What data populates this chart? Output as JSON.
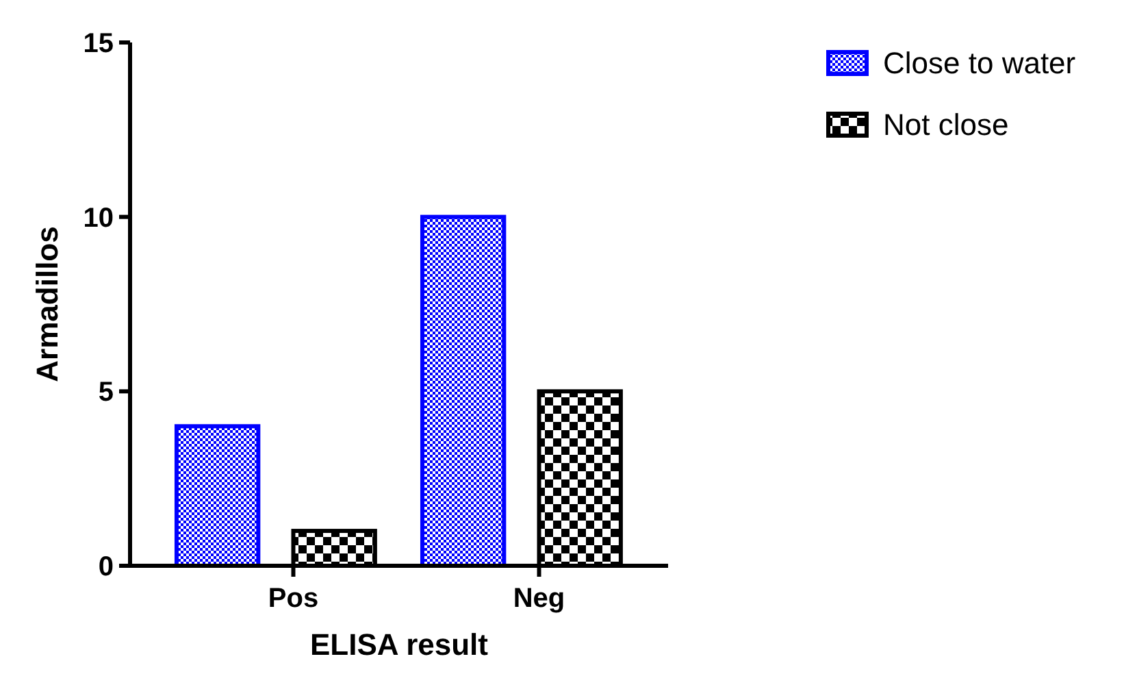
{
  "chart_data": {
    "type": "bar",
    "xlabel": "ELISA result",
    "ylabel": "Armadillos",
    "categories": [
      "Pos",
      "Neg"
    ],
    "series": [
      {
        "name": "Close to water",
        "color": "#0000ff",
        "values": [
          4,
          10
        ]
      },
      {
        "name": "Not close",
        "color": "#000000",
        "values": [
          1,
          5
        ]
      }
    ],
    "ylim": [
      0,
      15
    ],
    "yticks": [
      0,
      5,
      10,
      15
    ],
    "grid": false,
    "legend": "top right"
  }
}
